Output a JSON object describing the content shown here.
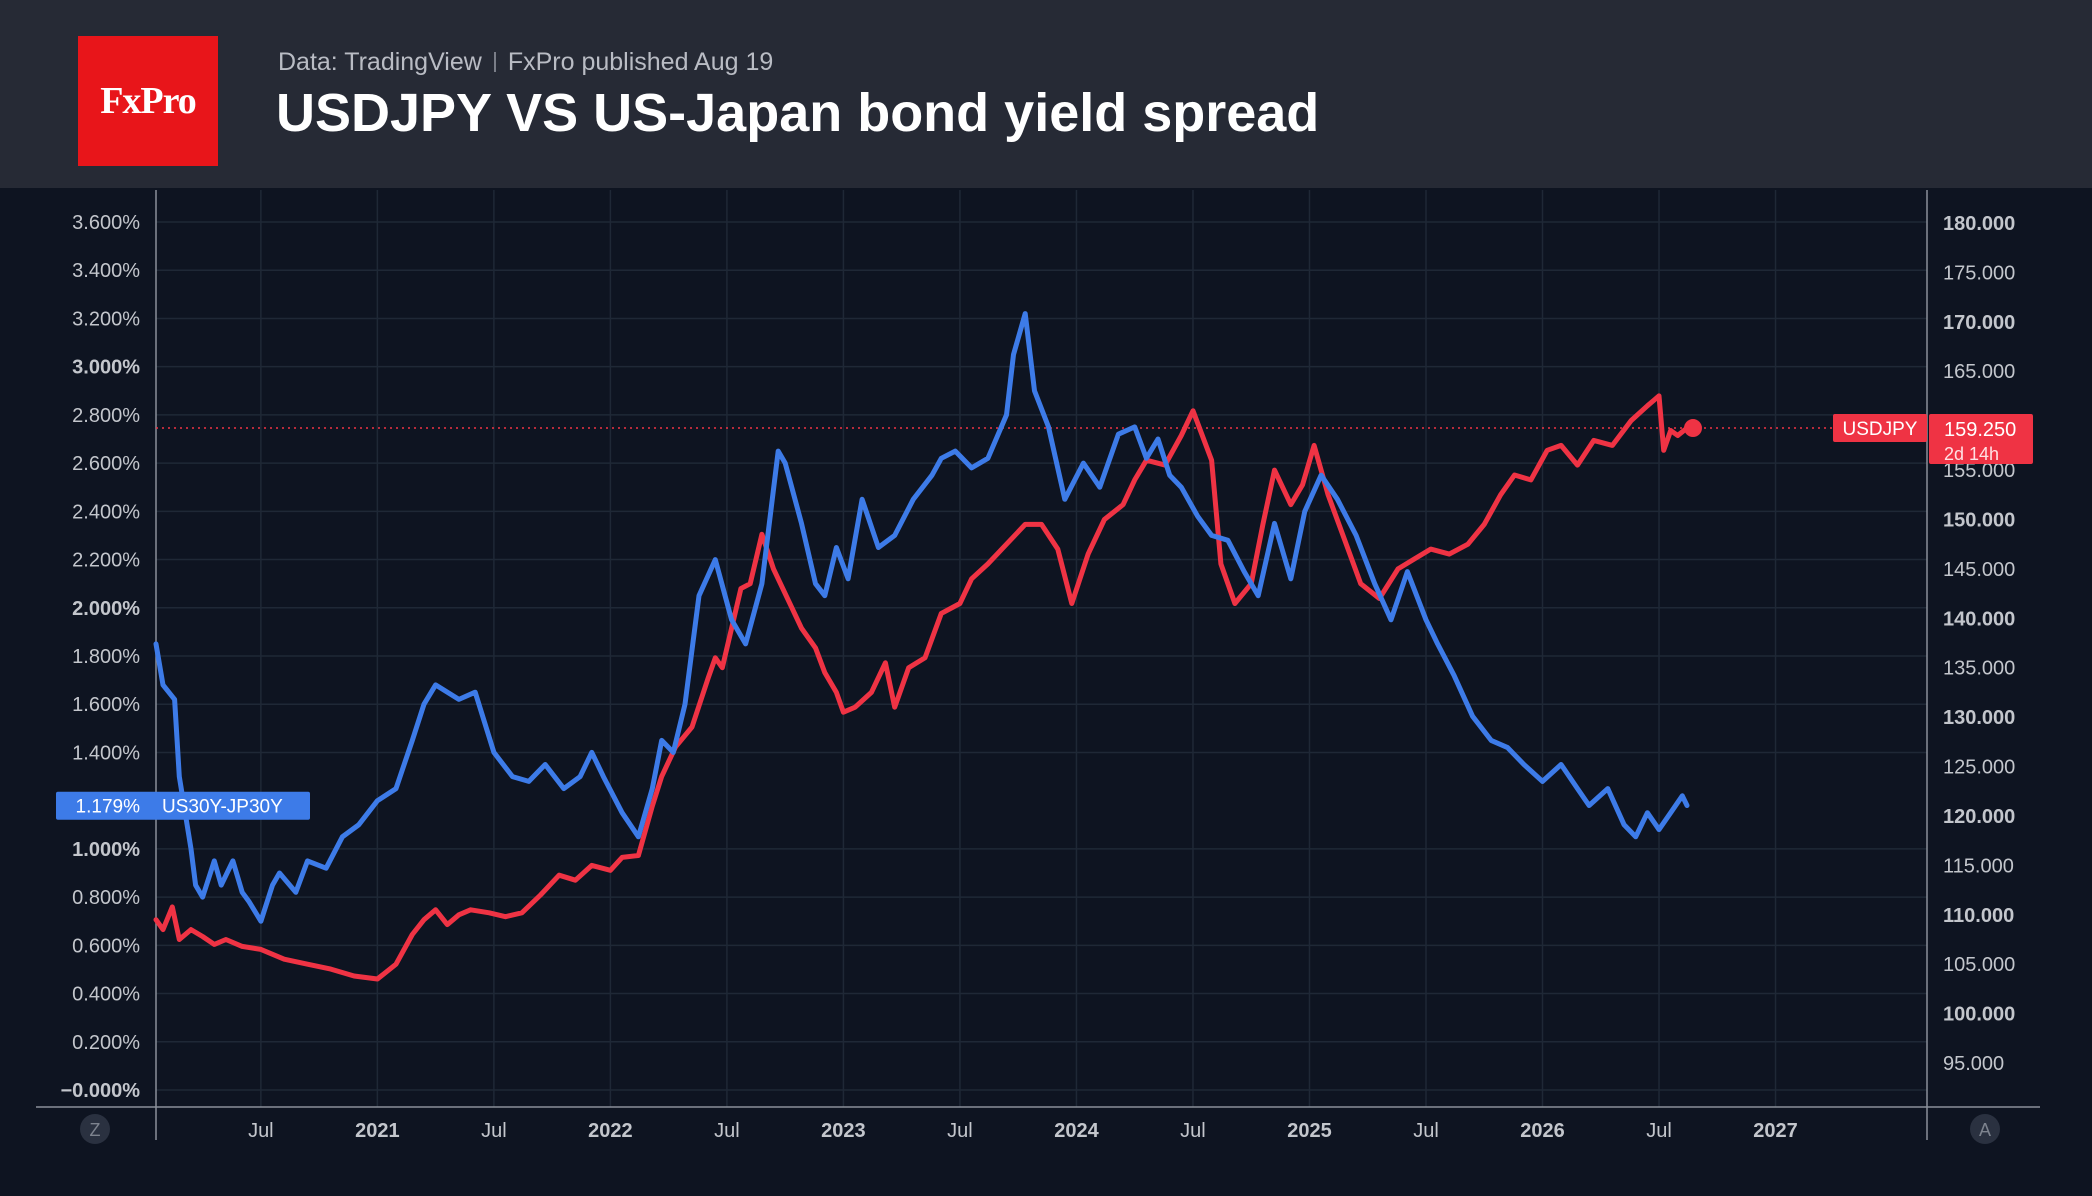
{
  "header": {
    "logo_text": "FxPro",
    "source": "Data: TradingView",
    "published": "FxPro published Aug 19",
    "title": "USDJPY VS US-Japan bond yield spread"
  },
  "colors": {
    "background": "#0e1421",
    "header_bg": "#262a35",
    "logo_red": "#e8151a",
    "spread_blue": "#3d7be8",
    "usdjpy_red": "#ef3344",
    "grid": "#1f2836",
    "axis_text": "#c3c6cc"
  },
  "chart_data": {
    "type": "line",
    "title": "USDJPY VS US-Japan bond yield spread",
    "grid": true,
    "x_axis": {
      "range": [
        2020.05,
        2027.65
      ],
      "ticks": [
        {
          "label": "Jul",
          "value": 2020.5,
          "bold": false
        },
        {
          "label": "2021",
          "value": 2021.0,
          "bold": true
        },
        {
          "label": "Jul",
          "value": 2021.5,
          "bold": false
        },
        {
          "label": "2022",
          "value": 2022.0,
          "bold": true
        },
        {
          "label": "Jul",
          "value": 2022.5,
          "bold": false
        },
        {
          "label": "2023",
          "value": 2023.0,
          "bold": true
        },
        {
          "label": "Jul",
          "value": 2023.5,
          "bold": false
        },
        {
          "label": "2024",
          "value": 2024.0,
          "bold": true
        },
        {
          "label": "Jul",
          "value": 2024.5,
          "bold": false
        },
        {
          "label": "2025",
          "value": 2025.0,
          "bold": true
        },
        {
          "label": "Jul",
          "value": 2025.5,
          "bold": false
        },
        {
          "label": "2026",
          "value": 2026.0,
          "bold": true
        },
        {
          "label": "Jul",
          "value": 2026.5,
          "bold": false
        },
        {
          "label": "2027",
          "value": 2027.0,
          "bold": true
        }
      ]
    },
    "left_axis": {
      "unit": "%",
      "range": [
        0.0,
        3.6
      ],
      "ticks": [
        {
          "label": "3.600%",
          "value": 3.6,
          "bold": false
        },
        {
          "label": "3.400%",
          "value": 3.4,
          "bold": false
        },
        {
          "label": "3.200%",
          "value": 3.2,
          "bold": false
        },
        {
          "label": "3.000%",
          "value": 3.0,
          "bold": true
        },
        {
          "label": "2.800%",
          "value": 2.8,
          "bold": false
        },
        {
          "label": "2.600%",
          "value": 2.6,
          "bold": false
        },
        {
          "label": "2.400%",
          "value": 2.4,
          "bold": false
        },
        {
          "label": "2.200%",
          "value": 2.2,
          "bold": false
        },
        {
          "label": "2.000%",
          "value": 2.0,
          "bold": true
        },
        {
          "label": "1.800%",
          "value": 1.8,
          "bold": false
        },
        {
          "label": "1.600%",
          "value": 1.6,
          "bold": false
        },
        {
          "label": "1.400%",
          "value": 1.4,
          "bold": false
        },
        {
          "label": "1.000%",
          "value": 1.0,
          "bold": true
        },
        {
          "label": "0.800%",
          "value": 0.8,
          "bold": false
        },
        {
          "label": "0.600%",
          "value": 0.6,
          "bold": false
        },
        {
          "label": "0.400%",
          "value": 0.4,
          "bold": false
        },
        {
          "label": "0.200%",
          "value": 0.2,
          "bold": false
        },
        {
          "label": "−0.000%",
          "value": 0.0,
          "bold": true
        }
      ]
    },
    "right_axis": {
      "range": [
        95.0,
        180.0
      ],
      "ticks": [
        {
          "label": "180.000",
          "value": 180,
          "bold": true
        },
        {
          "label": "175.000",
          "value": 175,
          "bold": false
        },
        {
          "label": "170.000",
          "value": 170,
          "bold": true
        },
        {
          "label": "165.000",
          "value": 165,
          "bold": false
        },
        {
          "label": "155.000",
          "value": 155,
          "bold": false
        },
        {
          "label": "150.000",
          "value": 150,
          "bold": true
        },
        {
          "label": "145.000",
          "value": 145,
          "bold": false
        },
        {
          "label": "140.000",
          "value": 140,
          "bold": true
        },
        {
          "label": "135.000",
          "value": 135,
          "bold": false
        },
        {
          "label": "130.000",
          "value": 130,
          "bold": true
        },
        {
          "label": "125.000",
          "value": 125,
          "bold": false
        },
        {
          "label": "120.000",
          "value": 120,
          "bold": true
        },
        {
          "label": "115.000",
          "value": 115,
          "bold": false
        },
        {
          "label": "110.000",
          "value": 110,
          "bold": true
        },
        {
          "label": "105.000",
          "value": 105,
          "bold": false
        },
        {
          "label": "100.000",
          "value": 100,
          "bold": true
        },
        {
          "label": "95.000",
          "value": 95,
          "bold": false
        }
      ]
    },
    "corner_buttons": {
      "left": "Z",
      "right": "A"
    },
    "series": [
      {
        "name": "US30Y-JP30Y",
        "axis": "left",
        "color": "#3d7be8",
        "last_label": "1.179%",
        "last_value": 1.179,
        "x": [
          2020.05,
          2020.08,
          2020.13,
          2020.15,
          2020.2,
          2020.22,
          2020.25,
          2020.3,
          2020.33,
          2020.38,
          2020.42,
          2020.45,
          2020.5,
          2020.55,
          2020.58,
          2020.65,
          2020.7,
          2020.78,
          2020.85,
          2020.92,
          2021.0,
          2021.08,
          2021.15,
          2021.2,
          2021.25,
          2021.35,
          2021.42,
          2021.5,
          2021.58,
          2021.65,
          2021.72,
          2021.8,
          2021.87,
          2021.92,
          2021.97,
          2022.05,
          2022.12,
          2022.18,
          2022.22,
          2022.27,
          2022.32,
          2022.38,
          2022.45,
          2022.52,
          2022.58,
          2022.65,
          2022.72,
          2022.75,
          2022.82,
          2022.88,
          2022.92,
          2022.97,
          2023.02,
          2023.08,
          2023.15,
          2023.22,
          2023.3,
          2023.38,
          2023.42,
          2023.48,
          2023.55,
          2023.62,
          2023.7,
          2023.73,
          2023.78,
          2023.82,
          2023.88,
          2023.95,
          2024.03,
          2024.1,
          2024.18,
          2024.25,
          2024.3,
          2024.35,
          2024.4,
          2024.45,
          2024.52,
          2024.58,
          2024.65,
          2024.72,
          2024.78,
          2024.85,
          2024.92,
          2024.98,
          2025.05,
          2025.12,
          2025.2,
          2025.28,
          2025.35,
          2025.42,
          2025.5,
          2025.55,
          2025.62,
          2025.7,
          2025.78,
          2025.85,
          2025.92,
          2026.0,
          2026.08,
          2026.15,
          2026.2,
          2026.28,
          2026.35,
          2026.4,
          2026.45,
          2026.5,
          2026.55,
          2026.6,
          2026.62
        ],
        "y": [
          1.85,
          1.68,
          1.62,
          1.3,
          1.0,
          0.85,
          0.8,
          0.95,
          0.85,
          0.95,
          0.82,
          0.78,
          0.7,
          0.85,
          0.9,
          0.82,
          0.95,
          0.92,
          1.05,
          1.1,
          1.2,
          1.25,
          1.45,
          1.6,
          1.68,
          1.62,
          1.65,
          1.4,
          1.3,
          1.28,
          1.35,
          1.25,
          1.3,
          1.4,
          1.3,
          1.15,
          1.05,
          1.25,
          1.45,
          1.4,
          1.6,
          2.05,
          2.2,
          1.95,
          1.85,
          2.1,
          2.65,
          2.6,
          2.35,
          2.1,
          2.05,
          2.25,
          2.12,
          2.45,
          2.25,
          2.3,
          2.45,
          2.55,
          2.62,
          2.65,
          2.58,
          2.62,
          2.8,
          3.05,
          3.22,
          2.9,
          2.75,
          2.45,
          2.6,
          2.5,
          2.72,
          2.75,
          2.62,
          2.7,
          2.55,
          2.5,
          2.38,
          2.3,
          2.28,
          2.15,
          2.05,
          2.35,
          2.12,
          2.4,
          2.55,
          2.45,
          2.3,
          2.1,
          1.95,
          2.15,
          1.95,
          1.85,
          1.72,
          1.55,
          1.45,
          1.42,
          1.35,
          1.28,
          1.35,
          1.25,
          1.18,
          1.25,
          1.1,
          1.05,
          1.15,
          1.08,
          1.15,
          1.22,
          1.18
        ]
      },
      {
        "name": "USDJPY",
        "axis": "right",
        "color": "#ef3344",
        "last_label": "159.250",
        "last_value": 159.25,
        "countdown": "2d 14h",
        "x": [
          2020.05,
          2020.08,
          2020.12,
          2020.15,
          2020.2,
          2020.25,
          2020.3,
          2020.35,
          2020.42,
          2020.5,
          2020.6,
          2020.7,
          2020.8,
          2020.9,
          2021.0,
          2021.08,
          2021.15,
          2021.2,
          2021.25,
          2021.3,
          2021.35,
          2021.4,
          2021.48,
          2021.55,
          2021.62,
          2021.7,
          2021.78,
          2021.85,
          2021.92,
          2022.0,
          2022.05,
          2022.12,
          2022.18,
          2022.22,
          2022.28,
          2022.35,
          2022.42,
          2022.45,
          2022.48,
          2022.52,
          2022.56,
          2022.6,
          2022.65,
          2022.7,
          2022.78,
          2022.82,
          2022.88,
          2022.92,
          2022.97,
          2023.0,
          2023.05,
          2023.12,
          2023.18,
          2023.22,
          2023.28,
          2023.35,
          2023.42,
          2023.5,
          2023.55,
          2023.62,
          2023.7,
          2023.78,
          2023.85,
          2023.92,
          2023.98,
          2024.05,
          2024.12,
          2024.2,
          2024.25,
          2024.3,
          2024.38,
          2024.45,
          2024.5,
          2024.58,
          2024.62,
          2024.68,
          2024.75,
          2024.8,
          2024.85,
          2024.92,
          2024.97,
          2025.02,
          2025.08,
          2025.15,
          2025.22,
          2025.3,
          2025.38,
          2025.45,
          2025.52,
          2025.6,
          2025.68,
          2025.75,
          2025.82,
          2025.88,
          2025.95,
          2026.02,
          2026.08,
          2026.15,
          2026.22,
          2026.3,
          2026.38,
          2026.45,
          2026.5,
          2026.52,
          2026.55,
          2026.58,
          2026.62
        ],
        "y": [
          109.5,
          108.5,
          110.8,
          107.5,
          108.5,
          107.8,
          107.0,
          107.5,
          106.8,
          106.5,
          105.5,
          105.0,
          104.5,
          103.8,
          103.5,
          105.0,
          108.0,
          109.5,
          110.5,
          109.0,
          110.0,
          110.5,
          110.2,
          109.8,
          110.2,
          112.0,
          114.0,
          113.5,
          115.0,
          114.5,
          115.8,
          116.0,
          121.0,
          124.0,
          127.0,
          129.0,
          134.0,
          136.0,
          135.0,
          139.0,
          143.0,
          143.5,
          148.5,
          145.0,
          141.0,
          139.0,
          137.0,
          134.5,
          132.5,
          130.5,
          131.0,
          132.5,
          135.5,
          131.0,
          135.0,
          136.0,
          140.5,
          141.5,
          144.0,
          145.5,
          147.5,
          149.5,
          149.5,
          147.0,
          141.5,
          146.5,
          150.0,
          151.5,
          154.0,
          156.0,
          155.5,
          158.5,
          161.0,
          156.0,
          145.5,
          141.5,
          143.5,
          149.5,
          155.0,
          151.5,
          153.5,
          157.5,
          152.5,
          148.0,
          143.5,
          142.0,
          145.0,
          146.0,
          147.0,
          146.5,
          147.5,
          149.5,
          152.5,
          154.5,
          154.0,
          157.0,
          157.5,
          155.5,
          158.0,
          157.5,
          160.0,
          161.5,
          162.5,
          157.0,
          159.0,
          158.5,
          159.25
        ]
      }
    ]
  }
}
